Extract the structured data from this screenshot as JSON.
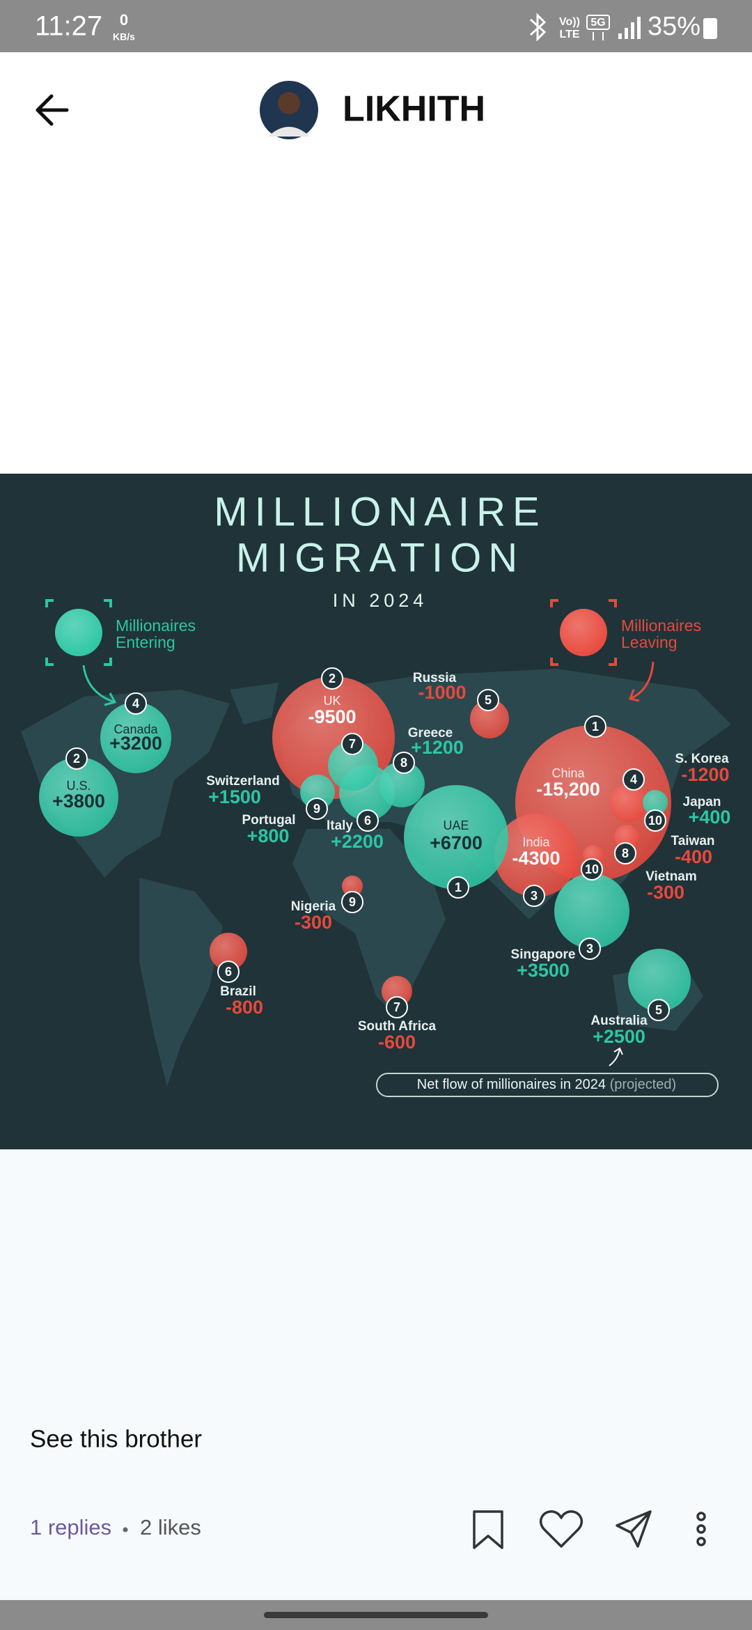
{
  "status_bar": {
    "time": "11:27",
    "net_speed": "0",
    "net_unit": "KB/s",
    "volte_top": "Vo))",
    "volte_bottom": "LTE",
    "network": "5G",
    "battery": "35%"
  },
  "header": {
    "name": "LIKHITH"
  },
  "post": {
    "image": {
      "title_lines": [
        "MILLIONAIRE",
        "MIGRATION"
      ],
      "subtitle": "IN 2024",
      "groups": [
        {
          "label_lines": [
            "Millionaires",
            "Entering"
          ],
          "color": "#2cc6a4",
          "bubbles": [
            {
              "rank": 1,
              "country": "UAE",
              "value": "+6700"
            },
            {
              "rank": 2,
              "country": "U.S.",
              "value": "+3800"
            },
            {
              "rank": 3,
              "country": "Singapore",
              "value": "+3500"
            },
            {
              "rank": 4,
              "country": "Canada",
              "value": "+3200"
            },
            {
              "rank": 5,
              "country": "Australia",
              "value": "+2500"
            },
            {
              "rank": 6,
              "country": "Italy",
              "value": "+2200"
            },
            {
              "rank": 7,
              "country": "Switzerland",
              "value": "+1500"
            },
            {
              "rank": 8,
              "country": "Greece",
              "value": "+1200"
            },
            {
              "rank": 9,
              "country": "Portugal",
              "value": "+800"
            },
            {
              "rank": 10,
              "country": "Japan",
              "value": "+400"
            }
          ]
        },
        {
          "label_lines": [
            "Millionaires",
            "Leaving"
          ],
          "color": "#e8483c",
          "bubbles": [
            {
              "rank": 1,
              "country": "China",
              "value": "-15,200"
            },
            {
              "rank": 2,
              "country": "UK",
              "value": "-9500"
            },
            {
              "rank": 3,
              "country": "India",
              "value": "-4300"
            },
            {
              "rank": 4,
              "country": "S. Korea",
              "value": "-1200"
            },
            {
              "rank": 5,
              "country": "Russia",
              "value": "-1000"
            },
            {
              "rank": 6,
              "country": "Brazil",
              "value": "-800"
            },
            {
              "rank": 7,
              "country": "South Africa",
              "value": "-600"
            },
            {
              "rank": 8,
              "country": "Taiwan",
              "value": "-400"
            },
            {
              "rank": 9,
              "country": "Nigeria",
              "value": "-300"
            },
            {
              "rank": 10,
              "country": "Vietnam",
              "value": "-300"
            }
          ]
        }
      ],
      "note": "Net flow of millionaires in 2024",
      "note_suffix": "(projected)"
    },
    "caption": "See this brother",
    "replies": "1 replies",
    "likes": "2 likes"
  }
}
